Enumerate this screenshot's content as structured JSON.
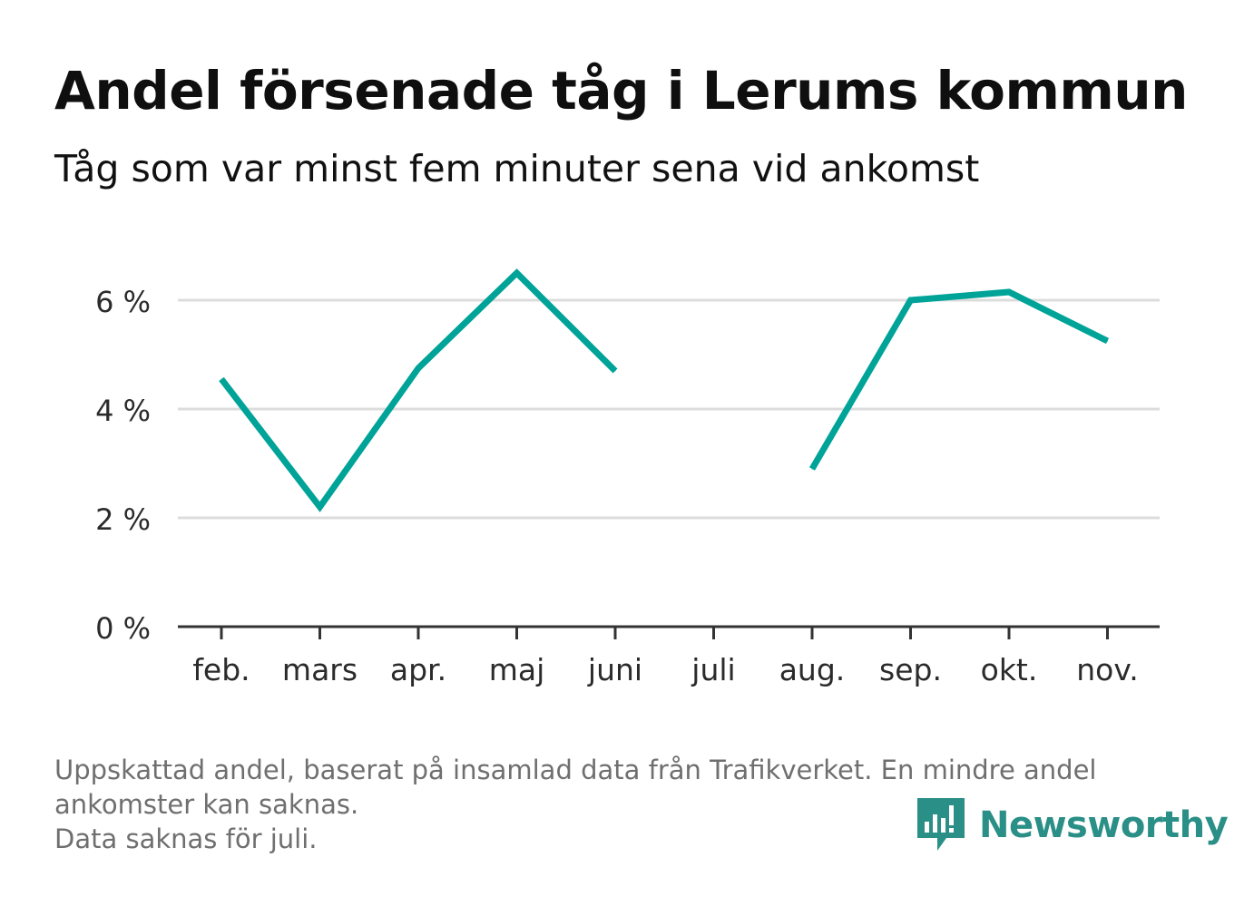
{
  "header": {
    "title": "Andel försenade tåg i Lerums kommun",
    "subtitle": "Tåg som var minst fem minuter sena vid ankomst"
  },
  "chart_data": {
    "type": "line",
    "title": "Andel försenade tåg i Lerums kommun",
    "subtitle": "Tåg som var minst fem minuter sena vid ankomst",
    "xlabel": "",
    "ylabel": "",
    "categories": [
      "feb.",
      "mars",
      "apr.",
      "maj",
      "juni",
      "juli",
      "aug.",
      "sep.",
      "okt.",
      "nov."
    ],
    "series": [
      {
        "name": "Andel försenade tåg",
        "values": [
          4.55,
          2.2,
          4.75,
          6.5,
          4.7,
          null,
          2.9,
          6.0,
          6.15,
          5.25
        ],
        "color": "#00a398"
      }
    ],
    "yticks": [
      0,
      2,
      4,
      6
    ],
    "ytick_labels": [
      "0 %",
      "2 %",
      "4 %",
      "6 %"
    ],
    "ylim": [
      0,
      7
    ],
    "grid": true,
    "legend": "none"
  },
  "footnote": {
    "line1": "Uppskattad andel, baserat på insamlad data från Trafikverket. En mindre andel",
    "line2": "ankomster kan saknas.",
    "line3": "Data saknas för juli."
  },
  "brand": {
    "name": "Newsworthy",
    "icon": "newsworthy-logo-icon",
    "color": "#2a8f86"
  }
}
